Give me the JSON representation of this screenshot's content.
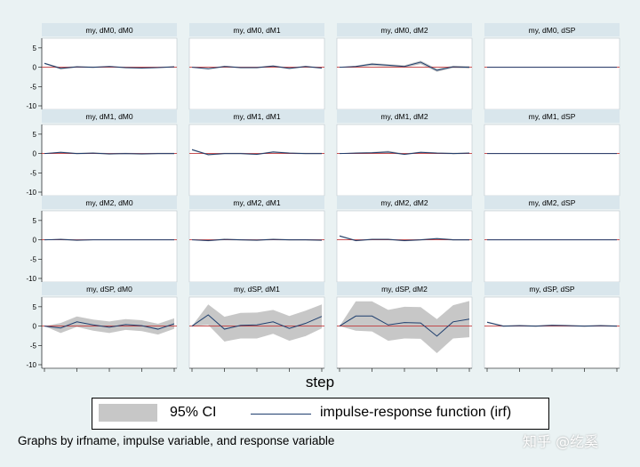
{
  "chart_data": {
    "type": "line",
    "x_title": "step",
    "xticks": [
      0,
      2,
      4,
      6,
      8
    ],
    "yticks": [
      5,
      0,
      -5,
      -10
    ],
    "ylim": [
      -10,
      7.5
    ],
    "xlim": [
      0,
      8
    ],
    "colors": {
      "ci": "#c7c7c7",
      "irf": "#1f3f6e",
      "zero": "#c0393b"
    },
    "panels": [
      {
        "title": "my, dM0, dM0",
        "irf": [
          1.0,
          -0.3,
          0.1,
          0.0,
          0.2,
          -0.1,
          -0.2,
          -0.1,
          0.1
        ],
        "ci_low": [
          0.8,
          -0.6,
          -0.1,
          -0.2,
          0.0,
          -0.3,
          -0.4,
          -0.2,
          -0.1
        ],
        "ci_high": [
          1.2,
          0.0,
          0.3,
          0.2,
          0.3,
          0.1,
          0.0,
          0.1,
          0.3
        ]
      },
      {
        "title": "my, dM0, dM1",
        "irf": [
          0.0,
          -0.4,
          0.2,
          -0.1,
          -0.1,
          0.3,
          -0.3,
          0.2,
          -0.2
        ],
        "ci_low": [
          0.0,
          -0.6,
          0.0,
          -0.3,
          -0.3,
          0.1,
          -0.5,
          0.0,
          -0.4
        ],
        "ci_high": [
          0.0,
          -0.2,
          0.4,
          0.1,
          0.1,
          0.5,
          -0.1,
          0.4,
          0.0
        ]
      },
      {
        "title": "my, dM0, dM2",
        "irf": [
          0.0,
          0.2,
          0.8,
          0.5,
          0.2,
          1.3,
          -0.8,
          0.1,
          0.0
        ],
        "ci_low": [
          0.0,
          0.0,
          0.4,
          0.2,
          -0.1,
          0.8,
          -1.2,
          -0.2,
          -0.3
        ],
        "ci_high": [
          0.0,
          0.4,
          1.1,
          0.8,
          0.5,
          1.7,
          -0.4,
          0.4,
          0.3
        ]
      },
      {
        "title": "my, dM0, dSP",
        "irf": [
          0,
          0,
          0,
          0,
          0,
          0,
          0,
          0,
          0
        ],
        "ci_low": [
          0,
          0,
          0,
          0,
          0,
          0,
          0,
          0,
          0
        ],
        "ci_high": [
          0,
          0,
          0,
          0,
          0,
          0,
          0,
          0,
          0
        ]
      },
      {
        "title": "my, dM1, dM0",
        "irf": [
          0.0,
          0.3,
          0.0,
          0.1,
          -0.1,
          0.0,
          -0.1,
          0.0,
          0.0
        ],
        "ci_low": [
          0.0,
          0.1,
          -0.2,
          -0.1,
          -0.3,
          -0.2,
          -0.3,
          -0.2,
          -0.2
        ],
        "ci_high": [
          0.0,
          0.5,
          0.2,
          0.3,
          0.1,
          0.2,
          0.1,
          0.2,
          0.2
        ]
      },
      {
        "title": "my, dM1, dM1",
        "irf": [
          1.0,
          -0.3,
          0.0,
          0.0,
          -0.2,
          0.4,
          0.1,
          0.0,
          0.0
        ],
        "ci_low": [
          0.8,
          -0.5,
          -0.2,
          -0.2,
          -0.4,
          0.2,
          -0.1,
          -0.2,
          -0.2
        ],
        "ci_high": [
          1.2,
          -0.1,
          0.2,
          0.2,
          0.0,
          0.6,
          0.3,
          0.2,
          0.2
        ]
      },
      {
        "title": "my, dM1, dM2",
        "irf": [
          0.0,
          0.1,
          0.2,
          0.4,
          -0.2,
          0.3,
          0.1,
          0.0,
          0.1
        ],
        "ci_low": [
          0.0,
          -0.1,
          0.0,
          0.1,
          -0.4,
          0.1,
          -0.1,
          -0.2,
          -0.1
        ],
        "ci_high": [
          0.0,
          0.3,
          0.4,
          0.7,
          0.0,
          0.5,
          0.3,
          0.2,
          0.3
        ]
      },
      {
        "title": "my, dM1, dSP",
        "irf": [
          0,
          0,
          0,
          0,
          0,
          0,
          0,
          0,
          0
        ],
        "ci_low": [
          0,
          0,
          0,
          0,
          0,
          0,
          0,
          0,
          0
        ],
        "ci_high": [
          0,
          0,
          0,
          0,
          0,
          0,
          0,
          0,
          0
        ]
      },
      {
        "title": "my, dM2, dM0",
        "irf": [
          0.0,
          0.1,
          -0.1,
          0.0,
          0.0,
          0.0,
          0.0,
          0.0,
          0.0
        ],
        "ci_low": [
          0.0,
          -0.1,
          -0.3,
          -0.1,
          -0.1,
          -0.1,
          -0.1,
          -0.1,
          -0.1
        ],
        "ci_high": [
          0.0,
          0.3,
          0.1,
          0.1,
          0.1,
          0.1,
          0.1,
          0.1,
          0.1
        ]
      },
      {
        "title": "my, dM2, dM1",
        "irf": [
          0.0,
          -0.2,
          0.1,
          0.0,
          -0.1,
          0.1,
          0.0,
          0.0,
          -0.1
        ],
        "ci_low": [
          0.0,
          -0.4,
          -0.1,
          -0.2,
          -0.3,
          -0.1,
          -0.2,
          -0.2,
          -0.3
        ],
        "ci_high": [
          0.0,
          0.0,
          0.3,
          0.2,
          0.1,
          0.3,
          0.2,
          0.2,
          0.1
        ]
      },
      {
        "title": "my, dM2, dM2",
        "irf": [
          1.0,
          -0.2,
          0.1,
          0.1,
          -0.2,
          0.0,
          0.3,
          0.0,
          0.0
        ],
        "ci_low": [
          0.8,
          -0.4,
          -0.1,
          -0.1,
          -0.4,
          -0.2,
          0.1,
          -0.2,
          -0.2
        ],
        "ci_high": [
          1.2,
          0.0,
          0.3,
          0.3,
          0.0,
          0.2,
          0.5,
          0.2,
          0.2
        ]
      },
      {
        "title": "my, dM2, dSP",
        "irf": [
          0,
          0,
          0,
          0,
          0,
          0,
          0,
          0,
          0
        ],
        "ci_low": [
          0,
          0,
          0,
          0,
          0,
          0,
          0,
          0,
          0
        ],
        "ci_high": [
          0,
          0,
          0,
          0,
          0,
          0,
          0,
          0,
          0
        ]
      },
      {
        "title": "my, dSP, dM0",
        "irf": [
          0.0,
          -0.5,
          1.1,
          0.3,
          -0.3,
          0.4,
          0.1,
          -0.8,
          0.6
        ],
        "ci_low": [
          0.0,
          -1.8,
          -0.2,
          -1.2,
          -1.8,
          -1.0,
          -1.3,
          -2.2,
          -0.7
        ],
        "ci_high": [
          0.0,
          0.8,
          2.5,
          1.7,
          1.2,
          1.8,
          1.5,
          0.6,
          2.0
        ]
      },
      {
        "title": "my, dSP, dM1",
        "irf": [
          0.0,
          2.9,
          -0.8,
          0.2,
          0.3,
          1.1,
          -0.6,
          0.7,
          2.5
        ],
        "ci_low": [
          0.0,
          0.3,
          -4.0,
          -3.2,
          -3.2,
          -2.0,
          -3.8,
          -2.6,
          -0.6
        ],
        "ci_high": [
          0.0,
          5.6,
          2.4,
          3.4,
          3.5,
          4.2,
          2.6,
          4.0,
          5.6
        ]
      },
      {
        "title": "my, dSP, dM2",
        "irf": [
          0.0,
          2.6,
          2.6,
          0.3,
          0.9,
          0.8,
          -2.6,
          1.1,
          1.8
        ],
        "ci_low": [
          0.0,
          -1.2,
          -1.4,
          -3.8,
          -3.2,
          -3.3,
          -7.0,
          -3.2,
          -2.9
        ],
        "ci_high": [
          0.0,
          6.4,
          6.4,
          4.2,
          5.0,
          4.9,
          1.8,
          5.4,
          6.5
        ]
      },
      {
        "title": "my, dSP, dSP",
        "irf": [
          1.0,
          0.0,
          0.1,
          0.0,
          0.2,
          0.1,
          0.0,
          0.1,
          0.0
        ],
        "ci_low": [
          0.8,
          -0.2,
          -0.1,
          -0.2,
          0.0,
          -0.1,
          -0.2,
          -0.1,
          -0.2
        ],
        "ci_high": [
          1.2,
          0.2,
          0.3,
          0.2,
          0.4,
          0.3,
          0.2,
          0.3,
          0.2
        ]
      }
    ]
  },
  "legend": {
    "ci_label": "95% CI",
    "irf_label": "impulse-response function (irf)"
  },
  "note": "Graphs by irfname, impulse variable, and response variable",
  "watermark": "知乎 @纥奚"
}
